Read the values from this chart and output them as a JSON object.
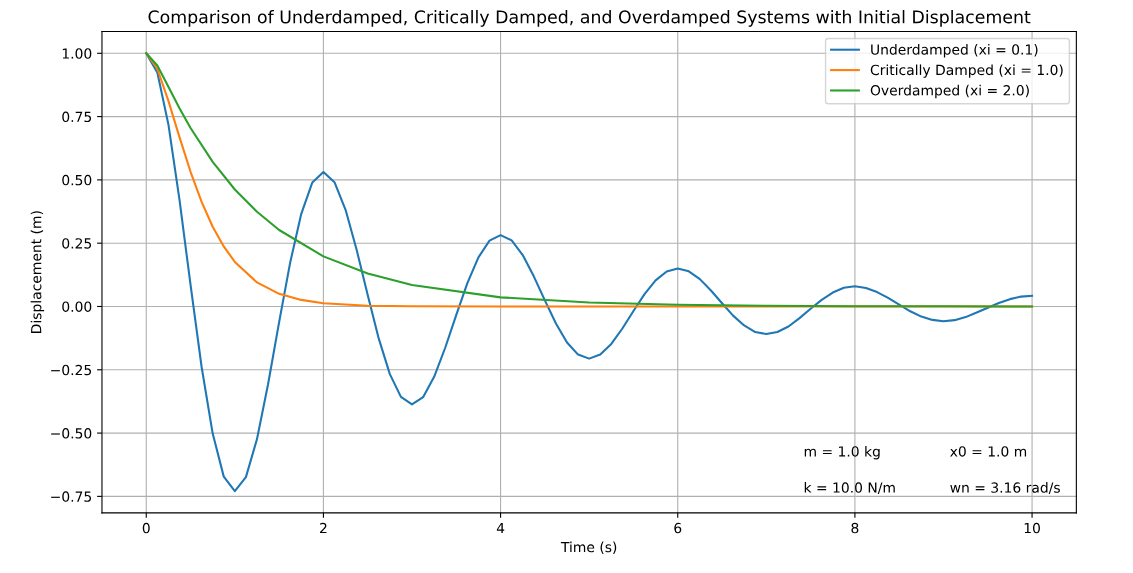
{
  "chart_data": {
    "type": "line",
    "title": "Comparison of Underdamped, Critically Damped, and Overdamped Systems with Initial Displacement",
    "xlabel": "Time (s)",
    "ylabel": "Displacement (m)",
    "xlim": [
      -0.5,
      10.5
    ],
    "ylim": [
      -0.815,
      1.086
    ],
    "xticks": [
      0,
      2,
      4,
      6,
      8,
      10
    ],
    "yticks": [
      {
        "value": -0.75,
        "label": "−0.75"
      },
      {
        "value": -0.5,
        "label": "−0.50"
      },
      {
        "value": -0.25,
        "label": "−0.25"
      },
      {
        "value": 0,
        "label": "0.00"
      },
      {
        "value": 0.25,
        "label": "0.25"
      },
      {
        "value": 0.5,
        "label": "0.50"
      },
      {
        "value": 0.75,
        "label": "0.75"
      },
      {
        "value": 1,
        "label": "1.00"
      }
    ],
    "grid": true,
    "legend": "top right",
    "series": [
      {
        "name": "Underdamped (xi = 0.1)",
        "color": "#1f77b4",
        "x": [
          0,
          0.125,
          0.25,
          0.375,
          0.5,
          0.625,
          0.75,
          0.875,
          1,
          1.125,
          1.25,
          1.375,
          1.5,
          1.625,
          1.75,
          1.875,
          2,
          2.125,
          2.25,
          2.375,
          2.5,
          2.625,
          2.75,
          2.875,
          3,
          3.125,
          3.25,
          3.375,
          3.5,
          3.625,
          3.75,
          3.875,
          4,
          4.125,
          4.25,
          4.375,
          4.5,
          4.625,
          4.75,
          4.875,
          5,
          5.125,
          5.25,
          5.375,
          5.5,
          5.625,
          5.75,
          5.875,
          6,
          6.125,
          6.25,
          6.375,
          6.5,
          6.625,
          6.75,
          6.875,
          7,
          7.125,
          7.25,
          7.375,
          7.5,
          7.625,
          7.75,
          7.875,
          8,
          8.125,
          8.25,
          8.375,
          8.5,
          8.625,
          8.75,
          8.875,
          9,
          9.125,
          9.25,
          9.375,
          9.5,
          9.625,
          9.75,
          9.875,
          10
        ],
        "values": [
          1,
          0.924,
          0.719,
          0.422,
          0.085,
          -0.239,
          -0.502,
          -0.672,
          -0.729,
          -0.674,
          -0.524,
          -0.307,
          -0.062,
          0.174,
          0.366,
          0.49,
          0.531,
          0.491,
          0.382,
          0.224,
          0.045,
          -0.127,
          -0.267,
          -0.357,
          -0.387,
          -0.358,
          -0.278,
          -0.163,
          -0.033,
          0.092,
          0.194,
          0.26,
          0.282,
          0.261,
          0.203,
          0.119,
          0.024,
          -0.067,
          -0.142,
          -0.19,
          -0.206,
          -0.19,
          -0.148,
          -0.087,
          -0.018,
          0.049,
          0.103,
          0.138,
          0.15,
          0.139,
          0.108,
          0.063,
          0.013,
          -0.036,
          -0.075,
          -0.101,
          -0.109,
          -0.101,
          -0.079,
          -0.046,
          -0.009,
          0.026,
          0.055,
          0.074,
          0.08,
          0.073,
          0.057,
          0.034,
          0.007,
          -0.019,
          -0.04,
          -0.053,
          -0.058,
          -0.054,
          -0.042,
          -0.024,
          -0.005,
          0.014,
          0.029,
          0.039,
          0.042
        ]
      },
      {
        "name": "Critically Damped (xi = 1.0)",
        "color": "#ff7f0e",
        "x": [
          0,
          0.125,
          0.25,
          0.375,
          0.5,
          0.625,
          0.75,
          0.875,
          1,
          1.25,
          1.5,
          1.75,
          2,
          2.5,
          3,
          4,
          6,
          8,
          10
        ],
        "values": [
          1,
          0.939,
          0.812,
          0.669,
          0.532,
          0.413,
          0.315,
          0.237,
          0.176,
          0.095,
          0.05,
          0.026,
          0.013,
          0.003,
          0.001,
          0,
          0,
          0,
          0
        ]
      },
      {
        "name": "Overdamped (xi = 2.0)",
        "color": "#2ca02c",
        "x": [
          0,
          0.125,
          0.25,
          0.375,
          0.5,
          0.75,
          1,
          1.25,
          1.5,
          2,
          2.5,
          3,
          4,
          5,
          6,
          7,
          8,
          9,
          10
        ],
        "values": [
          1,
          0.952,
          0.868,
          0.783,
          0.705,
          0.571,
          0.462,
          0.374,
          0.302,
          0.198,
          0.13,
          0.085,
          0.036,
          0.016,
          0.007,
          0.003,
          0.001,
          0.001,
          0
        ]
      }
    ],
    "annotations": [
      "m = 1.0 kg",
      "x0 = 1.0 m",
      "k = 10.0 N/m",
      "wn = 3.16 rad/s"
    ]
  }
}
